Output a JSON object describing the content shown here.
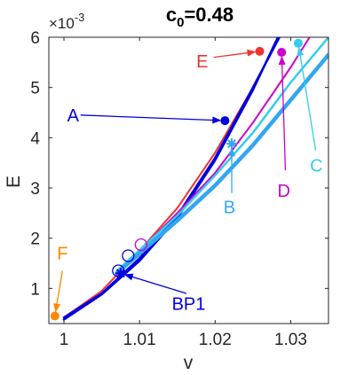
{
  "chart_data": {
    "type": "line",
    "title": "c",
    "title_subscript": "0",
    "title_suffix": "=0.48",
    "xlabel": "v",
    "ylabel": "E",
    "y_exponent_prefix": "×10",
    "y_exponent": "-3",
    "xlim": [
      0.998,
      1.035
    ],
    "ylim": [
      0.3,
      6.0
    ],
    "y_unit_scale": 0.001,
    "xticks": [
      1,
      1.01,
      1.02,
      1.03
    ],
    "xtick_labels": [
      "1",
      "1.01",
      "1.02",
      "1.03"
    ],
    "yticks": [
      1,
      2,
      3,
      4,
      5,
      6
    ],
    "ytick_labels": [
      "1",
      "2",
      "3",
      "4",
      "5",
      "6"
    ],
    "grid": false,
    "series": [
      {
        "color": "#ee3333",
        "width": 2,
        "points": [
          [
            1.0,
            0.42
          ],
          [
            1.005,
            0.95
          ],
          [
            1.01,
            1.75
          ],
          [
            1.015,
            2.6
          ],
          [
            1.02,
            3.7
          ],
          [
            1.025,
            5.0
          ],
          [
            1.0285,
            6.0
          ]
        ]
      },
      {
        "color": "#0000dd",
        "width": 2.5,
        "points": [
          [
            1.0,
            0.42
          ],
          [
            1.005,
            0.9
          ],
          [
            1.01,
            1.6
          ],
          [
            1.015,
            2.45
          ],
          [
            1.02,
            3.6
          ],
          [
            1.025,
            5.0
          ],
          [
            1.0285,
            6.0
          ]
        ]
      },
      {
        "color": "#0000dd",
        "width": 2.5,
        "points": [
          [
            1.0,
            0.38
          ],
          [
            1.005,
            0.88
          ],
          [
            1.01,
            1.55
          ],
          [
            1.015,
            2.4
          ],
          [
            1.02,
            3.55
          ],
          [
            1.025,
            4.95
          ],
          [
            1.0283,
            6.0
          ]
        ]
      },
      {
        "color": "#cc00cc",
        "width": 2,
        "points": [
          [
            1.009,
            1.6
          ],
          [
            1.015,
            2.5
          ],
          [
            1.02,
            3.3
          ],
          [
            1.025,
            4.3
          ],
          [
            1.03,
            5.4
          ],
          [
            1.0325,
            6.0
          ]
        ]
      },
      {
        "color": "#33ccee",
        "width": 2.5,
        "points": [
          [
            1.007,
            1.35
          ],
          [
            1.015,
            2.45
          ],
          [
            1.02,
            3.25
          ],
          [
            1.025,
            4.1
          ],
          [
            1.03,
            5.1
          ],
          [
            1.035,
            6.0
          ]
        ]
      },
      {
        "color": "#33a6f0",
        "width": 4.5,
        "points": [
          [
            1.007,
            1.3
          ],
          [
            1.015,
            2.35
          ],
          [
            1.02,
            3.05
          ],
          [
            1.025,
            3.85
          ],
          [
            1.03,
            4.75
          ],
          [
            1.035,
            5.65
          ]
        ]
      }
    ],
    "special_points": [
      {
        "label": "A",
        "x": 1.0213,
        "y": 4.34,
        "color": "#0000dd",
        "marker": "dot",
        "text_x": 1.0012,
        "text_y": 4.45,
        "arrow_from_x": 1.0022,
        "arrow_from_y": 4.45
      },
      {
        "label": "B",
        "x": 1.0222,
        "y": 3.88,
        "color": "#33a6f0",
        "marker": "asterisk",
        "text_x": 1.0219,
        "text_y": 2.62,
        "arrow_from_x": 1.0222,
        "arrow_from_y": 2.9
      },
      {
        "label": "C",
        "x": 1.031,
        "y": 5.88,
        "color": "#33ccee",
        "marker": "dot",
        "text_x": 1.0334,
        "text_y": 3.45,
        "arrow_from_x": 1.0333,
        "arrow_from_y": 3.75
      },
      {
        "label": "D",
        "x": 1.0288,
        "y": 5.7,
        "color": "#cc00cc",
        "marker": "dot",
        "text_x": 1.0291,
        "text_y": 2.95,
        "arrow_from_x": 1.0293,
        "arrow_from_y": 3.35
      },
      {
        "label": "E",
        "x": 1.0259,
        "y": 5.72,
        "color": "#ee3333",
        "marker": "dot",
        "text_x": 1.0183,
        "text_y": 5.52,
        "arrow_from_x": 1.0198,
        "arrow_from_y": 5.6
      },
      {
        "label": "F",
        "x": 0.9988,
        "y": 0.45,
        "color": "#ff8800",
        "marker": "dot",
        "text_x": 0.9998,
        "text_y": 1.7,
        "arrow_from_x": 0.9998,
        "arrow_from_y": 1.35
      },
      {
        "label": "BP1",
        "x": 1.0075,
        "y": 1.3,
        "color": "#0000dd",
        "marker": "asterisk",
        "text_x": 1.0165,
        "text_y": 0.7,
        "arrow_from_x": 1.0162,
        "arrow_from_y": 0.9
      }
    ],
    "open_circles": [
      {
        "x": 1.0072,
        "y": 1.35,
        "color": "#0000dd"
      },
      {
        "x": 1.0085,
        "y": 1.65,
        "color": "#0000dd"
      },
      {
        "x": 1.0102,
        "y": 1.87,
        "color": "#cc00cc"
      }
    ]
  }
}
